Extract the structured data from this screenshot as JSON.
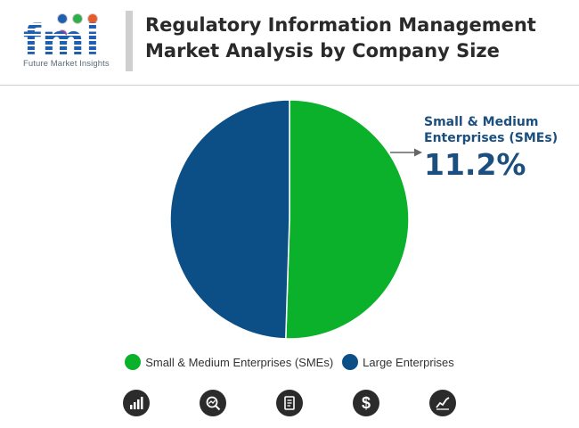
{
  "header": {
    "logo_text": "fmi",
    "logo_subtitle": "Future Market Insights",
    "title_line1": "Regulatory Information Management",
    "title_line2": "Market Analysis by Company Size"
  },
  "colors": {
    "sme": "#0bb02b",
    "large": "#0b4f86",
    "annotation": "#1b4f80",
    "icon_bg": "#2b2b2b"
  },
  "chart_data": {
    "type": "pie",
    "slices": [
      {
        "name": "Small & Medium Enterprises (SMEs)",
        "value": 50.5,
        "color": "#0bb02b"
      },
      {
        "name": "Large Enterprises",
        "value": 49.5,
        "color": "#0b4f86"
      }
    ],
    "start_angle_deg": 0,
    "direction": "clockwise",
    "annotation": {
      "label": "Small & Medium Enterprises (SMEs)",
      "value": "11.2%"
    },
    "legend": {
      "placement": "bottom",
      "entries": [
        "Small & Medium Enterprises (SMEs)",
        "Large Enterprises"
      ]
    }
  },
  "footer_icons": [
    {
      "name": "bar-growth-icon"
    },
    {
      "name": "magnify-chart-icon"
    },
    {
      "name": "document-report-icon"
    },
    {
      "name": "dollar-icon",
      "glyph": "$"
    },
    {
      "name": "line-trend-icon"
    }
  ]
}
